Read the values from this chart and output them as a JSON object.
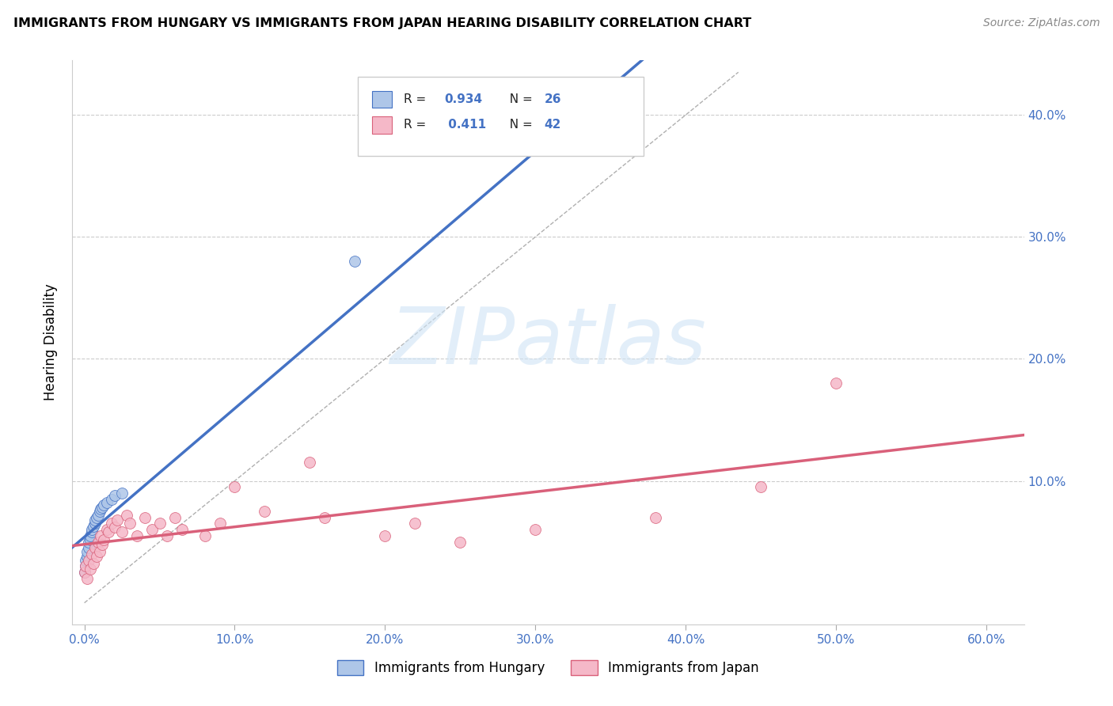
{
  "title": "IMMIGRANTS FROM HUNGARY VS IMMIGRANTS FROM JAPAN HEARING DISABILITY CORRELATION CHART",
  "source": "Source: ZipAtlas.com",
  "ylabel": "Hearing Disability",
  "xlim": [
    -0.008,
    0.625
  ],
  "ylim": [
    -0.018,
    0.445
  ],
  "x_ticks": [
    0.0,
    0.1,
    0.2,
    0.3,
    0.4,
    0.5,
    0.6
  ],
  "y_ticks": [
    0.1,
    0.2,
    0.3,
    0.4
  ],
  "hungary_R": "0.934",
  "hungary_N": "26",
  "japan_R": "0.411",
  "japan_N": "42",
  "hungary_fill_color": "#aec6e8",
  "japan_fill_color": "#f5b8c8",
  "hungary_line_color": "#4472c4",
  "japan_line_color": "#d9607a",
  "legend_label1": "Immigrants from Hungary",
  "legend_label2": "Immigrants from Japan",
  "watermark_text": "ZIPatlas",
  "background_color": "#ffffff",
  "grid_color": "#cccccc",
  "hungary_x": [
    0.0,
    0.001,
    0.001,
    0.002,
    0.002,
    0.003,
    0.003,
    0.004,
    0.004,
    0.005,
    0.005,
    0.006,
    0.007,
    0.007,
    0.008,
    0.009,
    0.01,
    0.011,
    0.012,
    0.013,
    0.015,
    0.018,
    0.02,
    0.025,
    0.18,
    0.35
  ],
  "hungary_y": [
    0.025,
    0.03,
    0.035,
    0.038,
    0.042,
    0.045,
    0.05,
    0.052,
    0.055,
    0.058,
    0.06,
    0.063,
    0.065,
    0.068,
    0.07,
    0.072,
    0.075,
    0.077,
    0.078,
    0.08,
    0.082,
    0.085,
    0.088,
    0.09,
    0.28,
    0.4
  ],
  "japan_x": [
    0.0,
    0.001,
    0.002,
    0.003,
    0.004,
    0.005,
    0.006,
    0.007,
    0.008,
    0.009,
    0.01,
    0.011,
    0.012,
    0.013,
    0.015,
    0.016,
    0.018,
    0.02,
    0.022,
    0.025,
    0.028,
    0.03,
    0.035,
    0.04,
    0.045,
    0.05,
    0.055,
    0.06,
    0.065,
    0.08,
    0.09,
    0.1,
    0.12,
    0.15,
    0.16,
    0.2,
    0.22,
    0.25,
    0.3,
    0.38,
    0.45,
    0.5
  ],
  "japan_y": [
    0.025,
    0.03,
    0.02,
    0.035,
    0.028,
    0.04,
    0.032,
    0.045,
    0.038,
    0.05,
    0.042,
    0.055,
    0.048,
    0.052,
    0.06,
    0.058,
    0.065,
    0.062,
    0.068,
    0.058,
    0.072,
    0.065,
    0.055,
    0.07,
    0.06,
    0.065,
    0.055,
    0.07,
    0.06,
    0.055,
    0.065,
    0.095,
    0.075,
    0.115,
    0.07,
    0.055,
    0.065,
    0.05,
    0.06,
    0.07,
    0.095,
    0.18
  ]
}
